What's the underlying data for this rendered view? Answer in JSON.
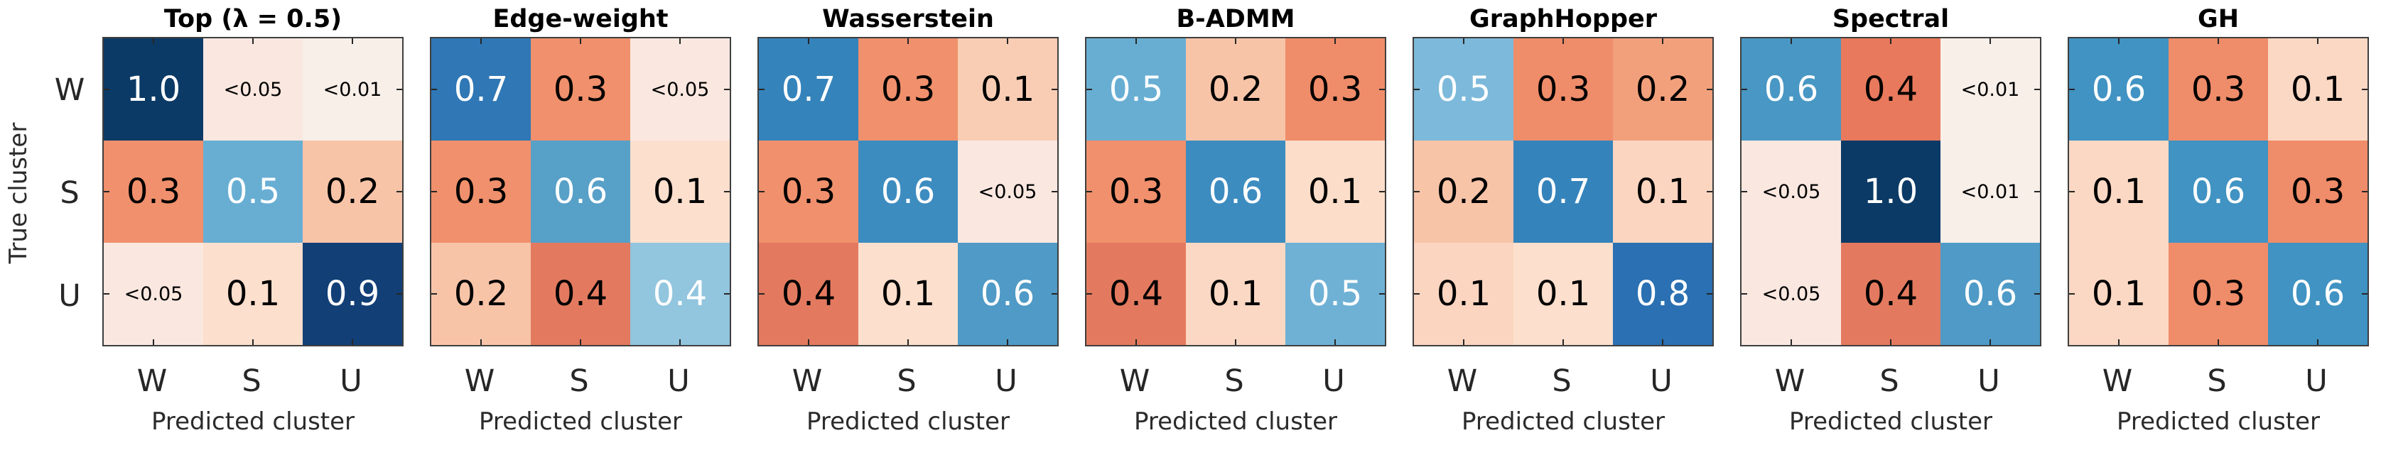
{
  "figure": {
    "description": "Row-normalized confusion matrices (true vs predicted cluster) for seven graph-distance methods"
  },
  "y_axis": {
    "label": "True cluster",
    "row_labels": [
      "W",
      "S",
      "U"
    ]
  },
  "x_axis": {
    "label": "Predicted cluster",
    "col_labels": [
      "W",
      "S",
      "U"
    ]
  },
  "colors": {
    "background": "#ffffff",
    "border": "#3f3f3f",
    "axis_text": "#2b2b2b",
    "tick_text": "#262626",
    "title_text": "#000000"
  },
  "chart_data": [
    {
      "type": "heatmap",
      "title": "Top (λ = 0.5)",
      "rows": [
        "W",
        "S",
        "U"
      ],
      "cols": [
        "W",
        "S",
        "U"
      ],
      "values": [
        [
          "1.0",
          "<0.05",
          "<0.01"
        ],
        [
          "0.3",
          "0.5",
          "0.2"
        ],
        [
          "<0.05",
          "0.1",
          "0.9"
        ]
      ],
      "cells": [
        [
          {
            "display": "1.0",
            "color": "#0c3a66",
            "text_color": "#ffffff"
          },
          {
            "display": "<0.05",
            "color": "#fae8e0",
            "text_color": "#000000",
            "small": true
          },
          {
            "display": "<0.01",
            "color": "#f8efe9",
            "text_color": "#000000",
            "small": true
          }
        ],
        [
          {
            "display": "0.3",
            "color": "#f0906c",
            "text_color": "#000000"
          },
          {
            "display": "0.5",
            "color": "#68aed3",
            "text_color": "#ffffff"
          },
          {
            "display": "0.2",
            "color": "#f8c4a8",
            "text_color": "#000000"
          }
        ],
        [
          {
            "display": "<0.05",
            "color": "#fae8e0",
            "text_color": "#000000",
            "small": true
          },
          {
            "display": "0.1",
            "color": "#fcdfcd",
            "text_color": "#000000"
          },
          {
            "display": "0.9",
            "color": "#123f76",
            "text_color": "#ffffff"
          }
        ]
      ]
    },
    {
      "type": "heatmap",
      "title": "Edge-weight",
      "rows": [
        "W",
        "S",
        "U"
      ],
      "cols": [
        "W",
        "S",
        "U"
      ],
      "values": [
        [
          "0.7",
          "0.3",
          "<0.05"
        ],
        [
          "0.3",
          "0.6",
          "0.1"
        ],
        [
          "0.2",
          "0.4",
          "0.4"
        ]
      ],
      "cells": [
        [
          {
            "display": "0.7",
            "color": "#2f77b5",
            "text_color": "#ffffff"
          },
          {
            "display": "0.3",
            "color": "#f0906c",
            "text_color": "#000000"
          },
          {
            "display": "<0.05",
            "color": "#fae8e0",
            "text_color": "#000000",
            "small": true
          }
        ],
        [
          {
            "display": "0.3",
            "color": "#f0906c",
            "text_color": "#000000"
          },
          {
            "display": "0.6",
            "color": "#57a0c8",
            "text_color": "#ffffff"
          },
          {
            "display": "0.1",
            "color": "#fcdfcd",
            "text_color": "#000000"
          }
        ],
        [
          {
            "display": "0.2",
            "color": "#f8c4a8",
            "text_color": "#000000"
          },
          {
            "display": "0.4",
            "color": "#e37a5f",
            "text_color": "#000000"
          },
          {
            "display": "0.4",
            "color": "#92c5de",
            "text_color": "#ffffff"
          }
        ]
      ]
    },
    {
      "type": "heatmap",
      "title": "Wasserstein",
      "rows": [
        "W",
        "S",
        "U"
      ],
      "cols": [
        "W",
        "S",
        "U"
      ],
      "values": [
        [
          "0.7",
          "0.3",
          "0.1"
        ],
        [
          "0.3",
          "0.6",
          "<0.05"
        ],
        [
          "0.4",
          "0.1",
          "0.6"
        ]
      ],
      "cells": [
        [
          {
            "display": "0.7",
            "color": "#3583bb",
            "text_color": "#ffffff"
          },
          {
            "display": "0.3",
            "color": "#f0906c",
            "text_color": "#000000"
          },
          {
            "display": "0.1",
            "color": "#f9cdb4",
            "text_color": "#000000"
          }
        ],
        [
          {
            "display": "0.3",
            "color": "#f0906c",
            "text_color": "#000000"
          },
          {
            "display": "0.6",
            "color": "#3d8cc0",
            "text_color": "#ffffff"
          },
          {
            "display": "<0.05",
            "color": "#fae8e0",
            "text_color": "#000000",
            "small": true
          }
        ],
        [
          {
            "display": "0.4",
            "color": "#e37a5f",
            "text_color": "#000000"
          },
          {
            "display": "0.1",
            "color": "#fcdfcd",
            "text_color": "#000000"
          },
          {
            "display": "0.6",
            "color": "#4f9ac6",
            "text_color": "#ffffff"
          }
        ]
      ]
    },
    {
      "type": "heatmap",
      "title": "B-ADMM",
      "rows": [
        "W",
        "S",
        "U"
      ],
      "cols": [
        "W",
        "S",
        "U"
      ],
      "values": [
        [
          "0.5",
          "0.2",
          "0.3"
        ],
        [
          "0.3",
          "0.6",
          "0.1"
        ],
        [
          "0.4",
          "0.1",
          "0.5"
        ]
      ],
      "cells": [
        [
          {
            "display": "0.5",
            "color": "#68aed3",
            "text_color": "#ffffff"
          },
          {
            "display": "0.2",
            "color": "#f8c4a8",
            "text_color": "#000000"
          },
          {
            "display": "0.3",
            "color": "#ef8c69",
            "text_color": "#000000"
          }
        ],
        [
          {
            "display": "0.3",
            "color": "#f0906c",
            "text_color": "#000000"
          },
          {
            "display": "0.6",
            "color": "#3d8cc0",
            "text_color": "#ffffff"
          },
          {
            "display": "0.1",
            "color": "#fbddc9",
            "text_color": "#000000"
          }
        ],
        [
          {
            "display": "0.4",
            "color": "#e37a5f",
            "text_color": "#000000"
          },
          {
            "display": "0.1",
            "color": "#fbd8c4",
            "text_color": "#000000"
          },
          {
            "display": "0.5",
            "color": "#6fb1d5",
            "text_color": "#ffffff"
          }
        ]
      ]
    },
    {
      "type": "heatmap",
      "title": "GraphHopper",
      "rows": [
        "W",
        "S",
        "U"
      ],
      "cols": [
        "W",
        "S",
        "U"
      ],
      "values": [
        [
          "0.5",
          "0.3",
          "0.2"
        ],
        [
          "0.2",
          "0.7",
          "0.1"
        ],
        [
          "0.1",
          "0.1",
          "0.8"
        ]
      ],
      "cells": [
        [
          {
            "display": "0.5",
            "color": "#7db9da",
            "text_color": "#ffffff"
          },
          {
            "display": "0.3",
            "color": "#ef8c69",
            "text_color": "#000000"
          },
          {
            "display": "0.2",
            "color": "#f2a07c",
            "text_color": "#000000"
          }
        ],
        [
          {
            "display": "0.2",
            "color": "#f8c4a8",
            "text_color": "#000000"
          },
          {
            "display": "0.7",
            "color": "#3583bb",
            "text_color": "#ffffff"
          },
          {
            "display": "0.1",
            "color": "#fbd5c0",
            "text_color": "#000000"
          }
        ],
        [
          {
            "display": "0.1",
            "color": "#fbd5c0",
            "text_color": "#000000"
          },
          {
            "display": "0.1",
            "color": "#fcdfcd",
            "text_color": "#000000"
          },
          {
            "display": "0.8",
            "color": "#2a70b2",
            "text_color": "#ffffff"
          }
        ]
      ]
    },
    {
      "type": "heatmap",
      "title": "Spectral",
      "rows": [
        "W",
        "S",
        "U"
      ],
      "cols": [
        "W",
        "S",
        "U"
      ],
      "values": [
        [
          "0.6",
          "0.4",
          "<0.01"
        ],
        [
          "<0.05",
          "1.0",
          "<0.01"
        ],
        [
          "<0.05",
          "0.4",
          "0.6"
        ]
      ],
      "cells": [
        [
          {
            "display": "0.6",
            "color": "#4897c4",
            "text_color": "#ffffff"
          },
          {
            "display": "0.4",
            "color": "#e8795c",
            "text_color": "#000000"
          },
          {
            "display": "<0.01",
            "color": "#f8efe9",
            "text_color": "#000000",
            "small": true
          }
        ],
        [
          {
            "display": "<0.05",
            "color": "#fae8e0",
            "text_color": "#000000",
            "small": true
          },
          {
            "display": "1.0",
            "color": "#0c3a66",
            "text_color": "#ffffff"
          },
          {
            "display": "<0.01",
            "color": "#f8efe9",
            "text_color": "#000000",
            "small": true
          }
        ],
        [
          {
            "display": "<0.05",
            "color": "#fae8e0",
            "text_color": "#000000",
            "small": true
          },
          {
            "display": "0.4",
            "color": "#e37a5f",
            "text_color": "#000000"
          },
          {
            "display": "0.6",
            "color": "#4f9ac6",
            "text_color": "#ffffff"
          }
        ]
      ]
    },
    {
      "type": "heatmap",
      "title": "GH",
      "rows": [
        "W",
        "S",
        "U"
      ],
      "cols": [
        "W",
        "S",
        "U"
      ],
      "values": [
        [
          "0.6",
          "0.3",
          "0.1"
        ],
        [
          "0.1",
          "0.6",
          "0.3"
        ],
        [
          "0.1",
          "0.3",
          "0.6"
        ]
      ],
      "cells": [
        [
          {
            "display": "0.6",
            "color": "#4093c2",
            "text_color": "#ffffff"
          },
          {
            "display": "0.3",
            "color": "#ef8c69",
            "text_color": "#000000"
          },
          {
            "display": "0.1",
            "color": "#fbd8c4",
            "text_color": "#000000"
          }
        ],
        [
          {
            "display": "0.1",
            "color": "#fbd8c4",
            "text_color": "#000000"
          },
          {
            "display": "0.6",
            "color": "#4093c2",
            "text_color": "#ffffff"
          },
          {
            "display": "0.3",
            "color": "#ef8c69",
            "text_color": "#000000"
          }
        ],
        [
          {
            "display": "0.1",
            "color": "#fbd8c4",
            "text_color": "#000000"
          },
          {
            "display": "0.3",
            "color": "#ef8c69",
            "text_color": "#000000"
          },
          {
            "display": "0.6",
            "color": "#4093c2",
            "text_color": "#ffffff"
          }
        ]
      ]
    }
  ]
}
